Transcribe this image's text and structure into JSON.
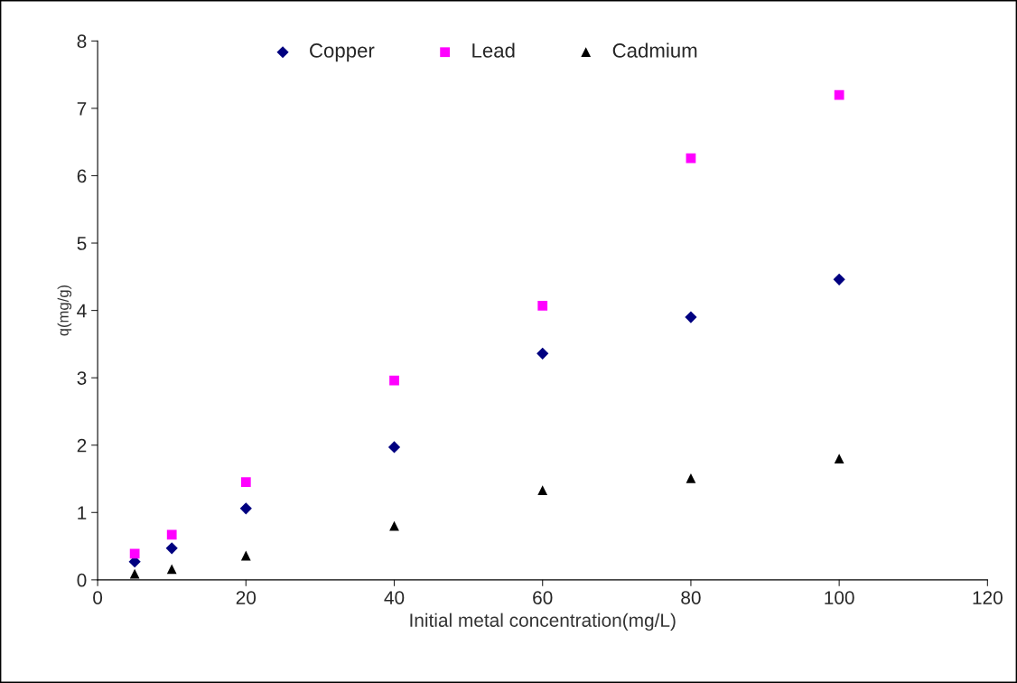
{
  "chart_data": {
    "type": "scatter",
    "xlabel": "Initial metal concentration(mg/L)",
    "ylabel": "q(mg/g)",
    "x": [
      5,
      10,
      20,
      40,
      60,
      80,
      100
    ],
    "series": [
      {
        "name": "Copper",
        "color": "#000080",
        "marker": "diamond",
        "values": [
          0.27,
          0.47,
          1.06,
          1.97,
          3.36,
          3.9,
          4.46
        ]
      },
      {
        "name": "Lead",
        "color": "#ff00ff",
        "marker": "square",
        "values": [
          0.39,
          0.67,
          1.45,
          2.96,
          4.07,
          6.26,
          7.2
        ]
      },
      {
        "name": "Cadmium",
        "color": "#000000",
        "marker": "triangle",
        "values": [
          0.09,
          0.16,
          0.36,
          0.8,
          1.33,
          1.51,
          1.8
        ]
      }
    ],
    "xlim": [
      0,
      120
    ],
    "xticks": [
      0,
      20,
      40,
      60,
      80,
      100,
      120
    ],
    "ylim": [
      0,
      8
    ],
    "yticks": [
      0,
      1,
      2,
      3,
      4,
      5,
      6,
      7,
      8
    ],
    "grid": false,
    "legend": "top"
  }
}
